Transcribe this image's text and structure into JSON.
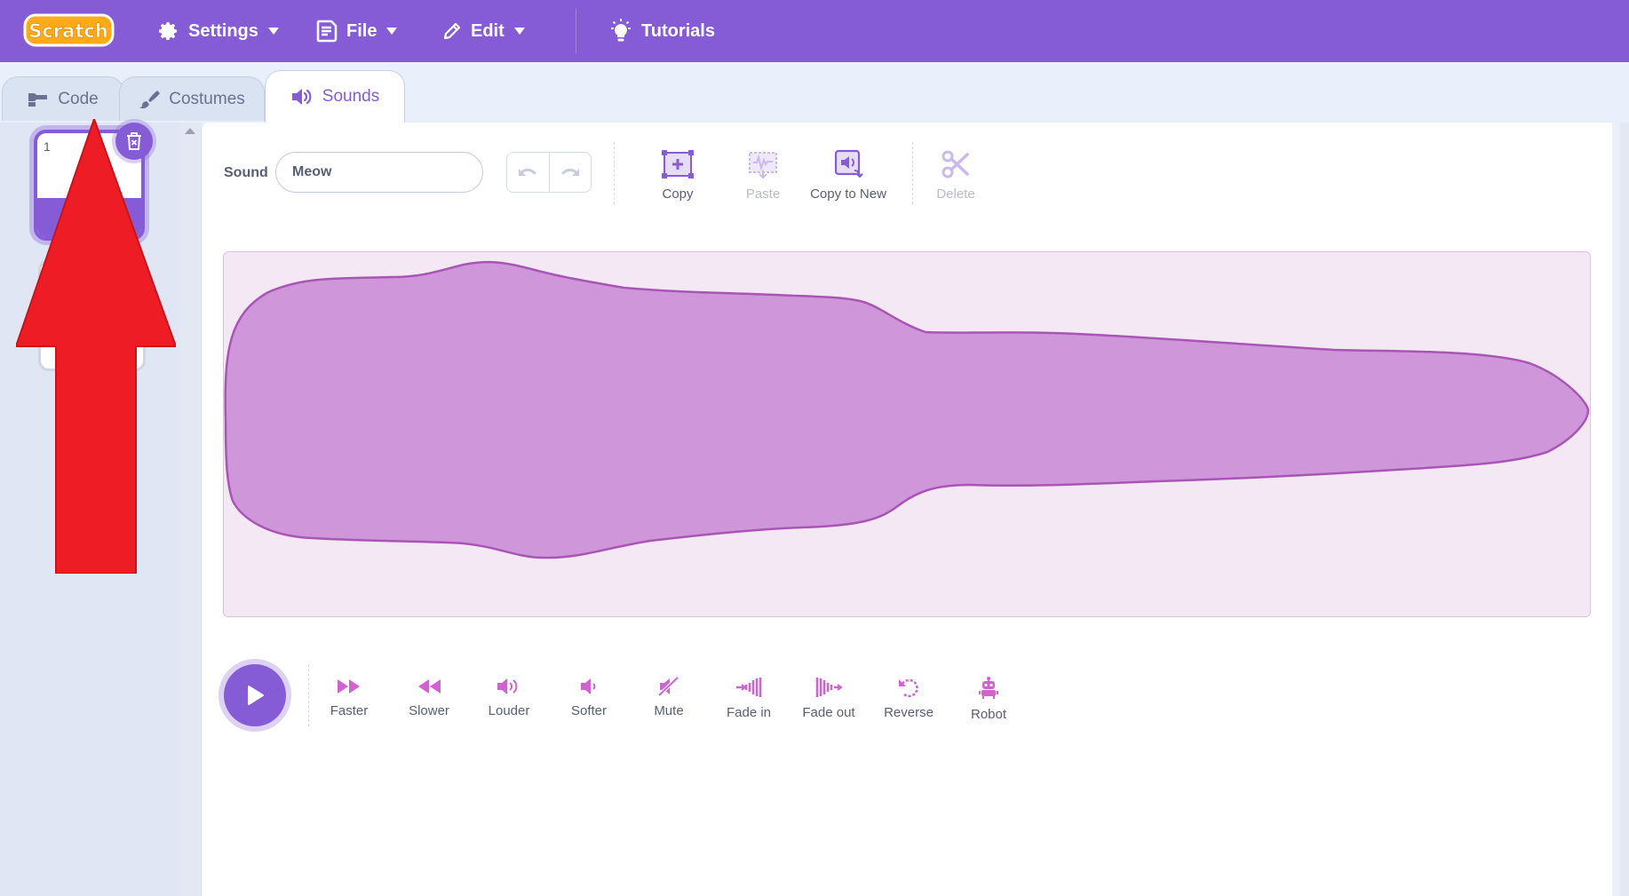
{
  "menubar": {
    "logo_text": "Scratch",
    "settings": "Settings",
    "file": "File",
    "edit": "Edit",
    "tutorials": "Tutorials"
  },
  "tabs": [
    {
      "label": "Code",
      "icon": "code-blocks-icon"
    },
    {
      "label": "Costumes",
      "icon": "brush-icon"
    },
    {
      "label": "Sounds",
      "icon": "speaker-icon",
      "active": true
    }
  ],
  "sound_list": {
    "items": [
      {
        "number": "1"
      }
    ]
  },
  "editor": {
    "sound_label": "Sound",
    "sound_name": "Meow",
    "tools": {
      "copy": "Copy",
      "paste": "Paste",
      "copy_to_new": "Copy to New",
      "delete": "Delete"
    },
    "effects": {
      "faster": "Faster",
      "slower": "Slower",
      "louder": "Louder",
      "softer": "Softer",
      "mute": "Mute",
      "fade_in": "Fade in",
      "fade_out": "Fade out",
      "reverse": "Reverse",
      "robot": "Robot"
    }
  },
  "colors": {
    "primary": "#855cd6",
    "wave_fill": "#cf97da",
    "wave_stroke": "#a855b5",
    "wave_bg": "#f4e8f5",
    "annotation_arrow": "#ee1c25"
  }
}
